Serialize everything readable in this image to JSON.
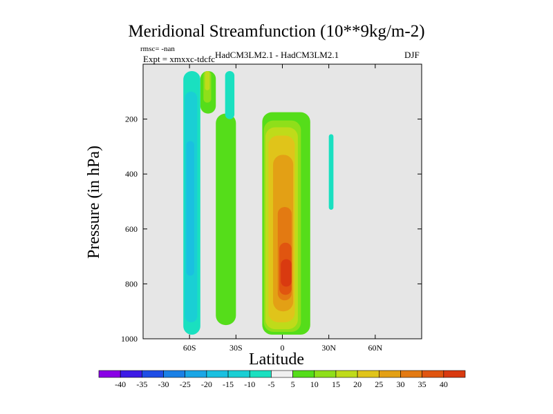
{
  "chart_data": {
    "type": "contour",
    "title": "Meridional Streamfunction (10**9kg/m-2)",
    "info": {
      "rmsc": "rmsc= -nan",
      "expt": "Expt = xmxxc-tdcfc",
      "models": "HadCM3LM2.1 - HadCM3LM2.1",
      "season": "DJF"
    },
    "xlabel": "Latitude",
    "ylabel": "Pressure (in hPa)",
    "xlim": [
      -90,
      90
    ],
    "ylim": [
      0,
      1000
    ],
    "y_inverted": true,
    "xticks": [
      {
        "value": -60,
        "label": "60S"
      },
      {
        "value": -30,
        "label": "30S"
      },
      {
        "value": 0,
        "label": "0"
      },
      {
        "value": 30,
        "label": "30N"
      },
      {
        "value": 60,
        "label": "60N"
      }
    ],
    "yticks": [
      {
        "value": 200,
        "label": "200"
      },
      {
        "value": 400,
        "label": "400"
      },
      {
        "value": 600,
        "label": "600"
      },
      {
        "value": 800,
        "label": "800"
      },
      {
        "value": 1000,
        "label": "1000"
      }
    ],
    "missing_color": "#e6e6e6",
    "colorbar": {
      "levels": [
        -40,
        -35,
        -30,
        -25,
        -20,
        -15,
        -10,
        -5,
        5,
        10,
        15,
        20,
        25,
        30,
        35,
        40
      ],
      "labels": [
        "-40",
        "-35",
        "-30",
        "-25",
        "-20",
        "-15",
        "-10",
        "-5",
        "5",
        "10",
        "15",
        "20",
        "25",
        "30",
        "35",
        "40"
      ],
      "colors": [
        "#8a00e6",
        "#3d1ae6",
        "#1f4de6",
        "#1a80e6",
        "#1aa6e6",
        "#1ac0e0",
        "#1acfd4",
        "#1ae0c0",
        "#f0f0f0",
        "#55dd1a",
        "#8fdf1a",
        "#bfdb1a",
        "#e0c41a",
        "#e3a015",
        "#e37a12",
        "#e05510",
        "#d93a10"
      ]
    },
    "features": [
      {
        "name": "southern-band-a",
        "level_index": 7,
        "lat": [
          -64,
          -53
        ],
        "p": [
          25,
          985
        ]
      },
      {
        "name": "southern-band-b",
        "level_index": 6,
        "lat": [
          -63,
          -55
        ],
        "p": [
          100,
          940
        ]
      },
      {
        "name": "southern-band-c",
        "level_index": 5,
        "lat": [
          -62,
          -57
        ],
        "p": [
          280,
          770
        ]
      },
      {
        "name": "upper-cell-a",
        "level_index": 9,
        "lat": [
          -53,
          -43
        ],
        "p": [
          25,
          180
        ]
      },
      {
        "name": "upper-cell-b",
        "level_index": 10,
        "lat": [
          -51,
          -46
        ],
        "p": [
          25,
          140
        ]
      },
      {
        "name": "upper-cell-c",
        "level_index": 11,
        "lat": [
          -50,
          -47
        ],
        "p": [
          25,
          95
        ]
      },
      {
        "name": "mid-band",
        "level_index": 9,
        "lat": [
          -43,
          -30
        ],
        "p": [
          180,
          950
        ]
      },
      {
        "name": "upper-blob",
        "level_index": 7,
        "lat": [
          -37,
          -31
        ],
        "p": [
          25,
          200
        ]
      },
      {
        "name": "hadley-cell-1",
        "level_index": 9,
        "lat": [
          -13,
          18
        ],
        "p": [
          175,
          985
        ]
      },
      {
        "name": "hadley-cell-2",
        "level_index": 10,
        "lat": [
          -12,
          12
        ],
        "p": [
          205,
          975
        ]
      },
      {
        "name": "hadley-cell-3",
        "level_index": 11,
        "lat": [
          -11,
          10
        ],
        "p": [
          230,
          965
        ]
      },
      {
        "name": "hadley-cell-4",
        "level_index": 12,
        "lat": [
          -9,
          8
        ],
        "p": [
          260,
          940
        ]
      },
      {
        "name": "hadley-cell-5",
        "level_index": 13,
        "lat": [
          -6,
          7
        ],
        "p": [
          330,
          900
        ]
      },
      {
        "name": "hadley-cell-6",
        "level_index": 14,
        "lat": [
          -3,
          6
        ],
        "p": [
          520,
          860
        ]
      },
      {
        "name": "hadley-cell-7",
        "level_index": 15,
        "lat": [
          -2,
          6
        ],
        "p": [
          650,
          840
        ]
      },
      {
        "name": "hadley-cell-8",
        "level_index": 16,
        "lat": [
          -1,
          6
        ],
        "p": [
          710,
          810
        ]
      },
      {
        "name": "northern-blob",
        "level_index": 7,
        "lat": [
          30,
          33
        ],
        "p": [
          255,
          530
        ]
      }
    ]
  }
}
